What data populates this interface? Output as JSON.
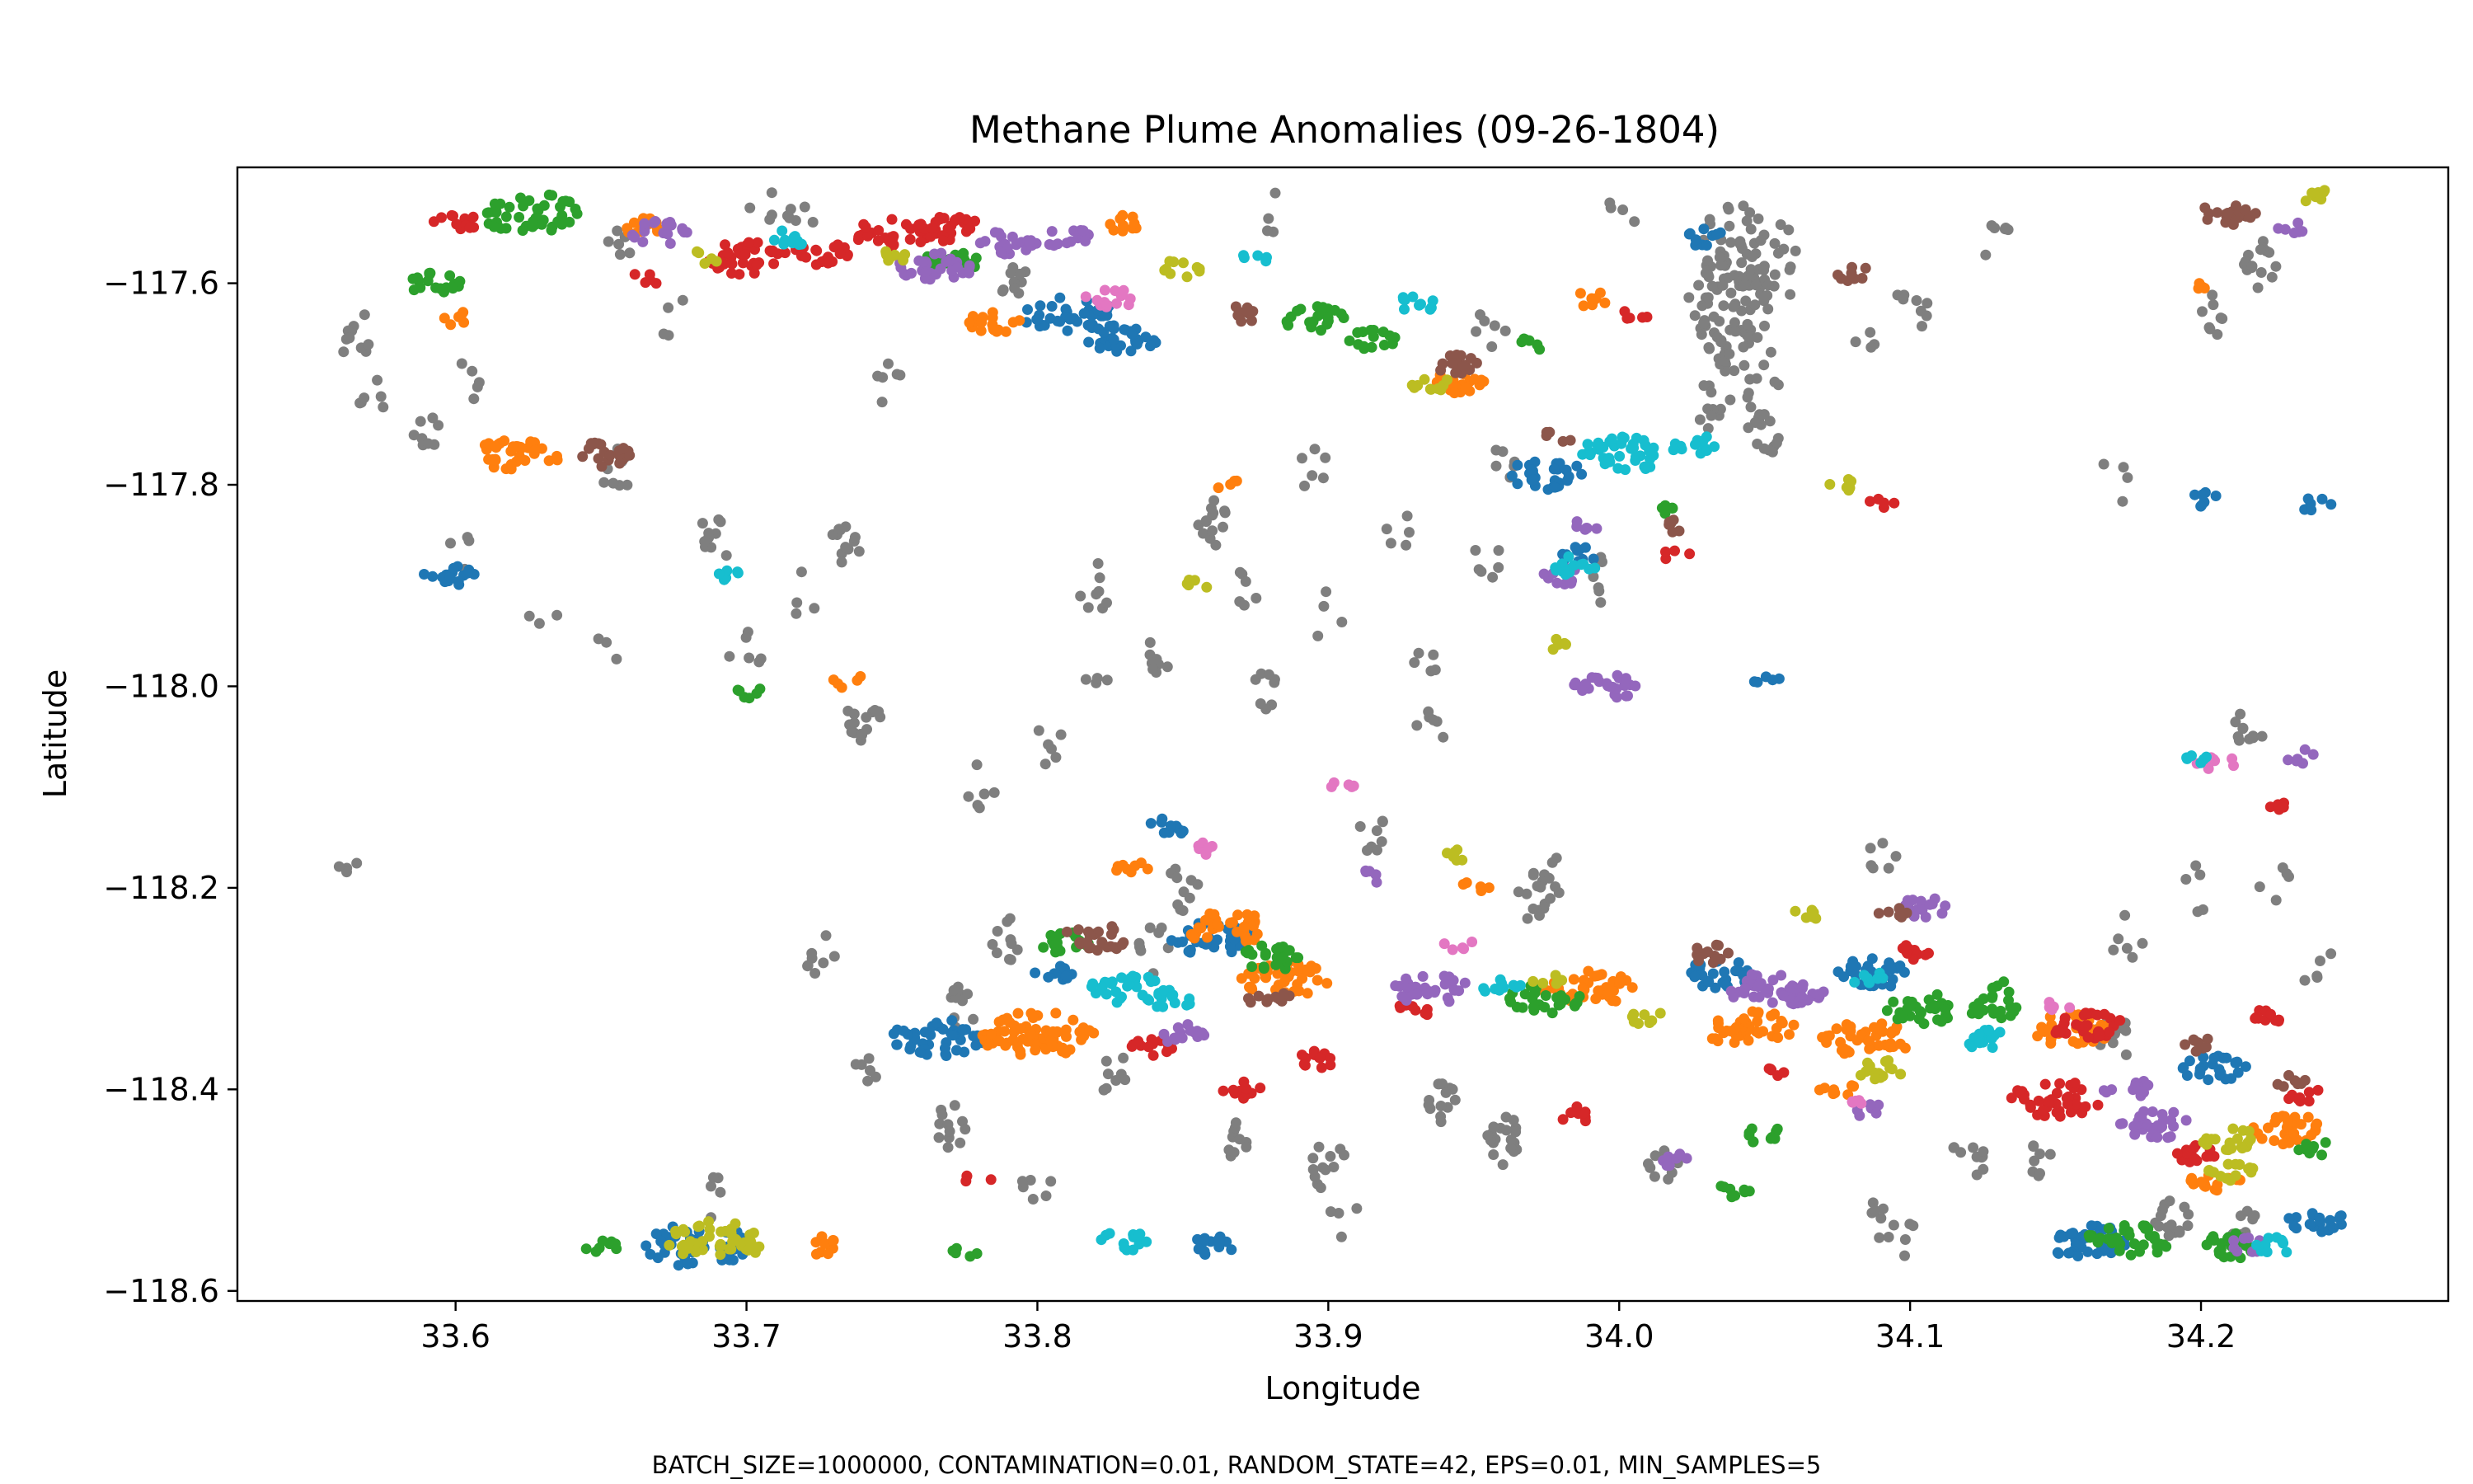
{
  "chart_data": {
    "type": "scatter",
    "title": "Methane Plume Anomalies (09-26-1804)",
    "xlabel": "Longitude",
    "ylabel": "Latitude",
    "xlim": [
      33.525,
      34.285
    ],
    "ylim": [
      -118.61,
      -117.485
    ],
    "xticks": [
      33.6,
      33.7,
      33.8,
      33.9,
      34.0,
      34.1,
      34.2
    ],
    "xtick_labels": [
      "33.6",
      "33.7",
      "33.8",
      "33.9",
      "34.0",
      "34.1",
      "34.2"
    ],
    "yticks": [
      -117.6,
      -117.8,
      -118.0,
      -118.2,
      -118.4,
      -118.6
    ],
    "ytick_labels": [
      "−117.6",
      "−117.8",
      "−118.0",
      "−118.2",
      "−118.4",
      "−118.6"
    ],
    "grid": false,
    "legend": "none",
    "noise_color": "#7f7f7f",
    "cluster_palette": [
      "#1f77b4",
      "#ff7f0e",
      "#2ca02c",
      "#d62728",
      "#9467bd",
      "#8c564b",
      "#e377c2",
      "#bcbd22",
      "#17becf"
    ],
    "clusters": [
      {
        "color": "#1f77b4",
        "centers": [
          [
            33.598,
            -117.89
          ],
          [
            33.81,
            -117.63
          ],
          [
            33.83,
            -117.655
          ],
          [
            33.765,
            -118.35
          ],
          [
            33.683,
            -118.555
          ],
          [
            33.86,
            -118.25
          ],
          [
            33.845,
            -118.14
          ],
          [
            33.975,
            -117.79
          ],
          [
            34.035,
            -118.285
          ],
          [
            34.088,
            -118.285
          ],
          [
            34.16,
            -118.55
          ],
          [
            34.205,
            -118.38
          ],
          [
            34.24,
            -118.53
          ],
          [
            34.2,
            -117.815
          ],
          [
            34.24,
            -117.82
          ],
          [
            34.03,
            -117.555
          ],
          [
            34.05,
            -117.995
          ],
          [
            33.86,
            -118.555
          ],
          [
            33.805,
            -118.285
          ],
          [
            33.985,
            -117.87
          ]
        ],
        "counts": [
          18,
          40,
          30,
          45,
          50,
          35,
          10,
          30,
          30,
          30,
          35,
          25,
          20,
          8,
          6,
          10,
          5,
          14,
          10,
          10
        ]
      },
      {
        "color": "#ff7f0e",
        "centers": [
          [
            33.622,
            -117.77
          ],
          [
            33.8,
            -118.345
          ],
          [
            33.785,
            -117.64
          ],
          [
            33.832,
            -118.18
          ],
          [
            33.865,
            -118.24
          ],
          [
            33.885,
            -118.29
          ],
          [
            33.945,
            -117.7
          ],
          [
            33.99,
            -118.3
          ],
          [
            34.045,
            -118.34
          ],
          [
            34.085,
            -118.35
          ],
          [
            34.155,
            -118.34
          ],
          [
            34.23,
            -118.44
          ],
          [
            34.205,
            -118.49
          ],
          [
            33.725,
            -118.555
          ],
          [
            33.6,
            -117.635
          ],
          [
            33.83,
            -117.54
          ],
          [
            34.075,
            -118.4
          ],
          [
            33.99,
            -117.615
          ],
          [
            33.665,
            -117.545
          ],
          [
            34.2,
            -117.6
          ],
          [
            33.865,
            -117.8
          ],
          [
            33.735,
            -117.995
          ],
          [
            33.95,
            -118.2
          ]
        ],
        "counts": [
          35,
          70,
          18,
          8,
          35,
          40,
          20,
          40,
          40,
          40,
          35,
          30,
          15,
          10,
          6,
          10,
          8,
          8,
          14,
          4,
          4,
          5,
          5
        ]
      },
      {
        "color": "#2ca02c",
        "centers": [
          [
            33.593,
            -117.6
          ],
          [
            33.625,
            -117.53
          ],
          [
            33.77,
            -117.58
          ],
          [
            33.895,
            -117.635
          ],
          [
            33.915,
            -117.655
          ],
          [
            33.81,
            -118.255
          ],
          [
            33.88,
            -118.27
          ],
          [
            33.975,
            -118.31
          ],
          [
            34.105,
            -118.32
          ],
          [
            34.13,
            -118.32
          ],
          [
            34.175,
            -118.55
          ],
          [
            34.21,
            -118.555
          ],
          [
            34.24,
            -118.46
          ],
          [
            33.65,
            -118.555
          ],
          [
            33.7,
            -118.005
          ],
          [
            33.775,
            -118.56
          ],
          [
            34.05,
            -118.445
          ],
          [
            33.97,
            -117.66
          ],
          [
            34.13,
            -118.3
          ],
          [
            34.04,
            -118.5
          ],
          [
            34.015,
            -117.825
          ]
        ],
        "counts": [
          18,
          45,
          20,
          22,
          15,
          18,
          25,
          30,
          30,
          20,
          35,
          25,
          8,
          8,
          6,
          5,
          10,
          6,
          6,
          8,
          5
        ]
      },
      {
        "color": "#d62728",
        "centers": [
          [
            33.6,
            -117.54
          ],
          [
            33.7,
            -117.575
          ],
          [
            33.75,
            -117.55
          ],
          [
            33.77,
            -117.545
          ],
          [
            33.725,
            -117.57
          ],
          [
            33.895,
            -118.37
          ],
          [
            33.87,
            -118.4
          ],
          [
            34.16,
            -118.335
          ],
          [
            34.15,
            -118.41
          ],
          [
            34.2,
            -118.465
          ],
          [
            34.22,
            -118.33
          ],
          [
            34.225,
            -118.12
          ],
          [
            33.93,
            -118.32
          ],
          [
            33.665,
            -117.595
          ],
          [
            34.005,
            -117.63
          ],
          [
            34.09,
            -117.82
          ],
          [
            33.84,
            -118.36
          ],
          [
            34.02,
            -117.87
          ],
          [
            34.1,
            -118.265
          ],
          [
            34.055,
            -118.38
          ],
          [
            33.78,
            -118.49
          ],
          [
            33.985,
            -118.425
          ],
          [
            34.235,
            -118.405
          ]
        ],
        "counts": [
          12,
          35,
          30,
          25,
          20,
          12,
          10,
          30,
          40,
          15,
          10,
          5,
          8,
          5,
          5,
          5,
          15,
          4,
          10,
          5,
          4,
          8,
          8
        ]
      },
      {
        "color": "#9467bd",
        "centers": [
          [
            33.765,
            -117.585
          ],
          [
            33.79,
            -117.56
          ],
          [
            33.81,
            -117.555
          ],
          [
            33.995,
            -118.0
          ],
          [
            33.935,
            -118.3
          ],
          [
            34.05,
            -118.3
          ],
          [
            34.105,
            -118.22
          ],
          [
            34.185,
            -118.435
          ],
          [
            34.215,
            -118.555
          ],
          [
            33.67,
            -117.55
          ],
          [
            33.98,
            -117.89
          ],
          [
            33.915,
            -118.19
          ],
          [
            33.85,
            -118.345
          ],
          [
            34.235,
            -118.07
          ],
          [
            34.085,
            -118.42
          ],
          [
            34.065,
            -118.305
          ],
          [
            33.99,
            -117.84
          ],
          [
            34.02,
            -118.47
          ],
          [
            34.175,
            -118.4
          ],
          [
            34.23,
            -117.545
          ]
        ],
        "counts": [
          30,
          20,
          15,
          25,
          30,
          30,
          15,
          30,
          8,
          20,
          10,
          5,
          15,
          6,
          6,
          20,
          6,
          8,
          15,
          6
        ]
      },
      {
        "color": "#8c564b",
        "centers": [
          [
            33.65,
            -117.77
          ],
          [
            33.82,
            -118.25
          ],
          [
            33.88,
            -118.31
          ],
          [
            33.945,
            -117.68
          ],
          [
            34.03,
            -118.265
          ],
          [
            34.21,
            -117.53
          ],
          [
            33.98,
            -117.75
          ],
          [
            34.02,
            -117.84
          ],
          [
            34.08,
            -117.59
          ],
          [
            34.23,
            -118.39
          ],
          [
            33.87,
            -117.63
          ],
          [
            34.2,
            -118.355
          ],
          [
            34.095,
            -118.225
          ]
        ],
        "counts": [
          20,
          25,
          12,
          14,
          12,
          20,
          5,
          6,
          8,
          8,
          10,
          8,
          6
        ]
      },
      {
        "color": "#e377c2",
        "centers": [
          [
            33.825,
            -117.615
          ],
          [
            33.86,
            -118.16
          ],
          [
            34.205,
            -118.075
          ],
          [
            34.08,
            -118.415
          ],
          [
            33.945,
            -118.255
          ],
          [
            33.905,
            -118.1
          ],
          [
            34.15,
            -118.32
          ]
        ],
        "counts": [
          15,
          6,
          10,
          5,
          5,
          5,
          5
        ]
      },
      {
        "color": "#bcbd22",
        "centers": [
          [
            33.69,
            -118.55
          ],
          [
            33.935,
            -117.7
          ],
          [
            33.85,
            -117.585
          ],
          [
            33.685,
            -117.575
          ],
          [
            34.21,
            -118.45
          ],
          [
            34.21,
            -118.48
          ],
          [
            34.09,
            -118.38
          ],
          [
            34.24,
            -117.515
          ],
          [
            33.98,
            -117.96
          ],
          [
            34.01,
            -118.33
          ],
          [
            34.065,
            -118.225
          ],
          [
            33.855,
            -117.9
          ],
          [
            33.945,
            -118.17
          ],
          [
            33.75,
            -117.575
          ],
          [
            33.975,
            -118.29
          ],
          [
            34.075,
            -117.8
          ]
        ],
        "counts": [
          45,
          10,
          10,
          5,
          20,
          15,
          15,
          8,
          5,
          8,
          6,
          5,
          6,
          8,
          5,
          6
        ]
      },
      {
        "color": "#17becf",
        "centers": [
          [
            34.0,
            -117.77
          ],
          [
            34.025,
            -117.76
          ],
          [
            33.985,
            -117.88
          ],
          [
            33.83,
            -118.3
          ],
          [
            33.845,
            -118.31
          ],
          [
            33.93,
            -117.62
          ],
          [
            34.125,
            -118.35
          ],
          [
            33.715,
            -117.555
          ],
          [
            33.695,
            -117.89
          ],
          [
            33.875,
            -117.575
          ],
          [
            34.225,
            -118.555
          ],
          [
            33.83,
            -118.55
          ],
          [
            34.085,
            -118.29
          ],
          [
            33.96,
            -118.3
          ],
          [
            34.2,
            -118.07
          ]
        ],
        "counts": [
          40,
          15,
          14,
          30,
          15,
          10,
          15,
          10,
          6,
          5,
          10,
          14,
          8,
          10,
          6
        ]
      }
    ],
    "noise_centers": [
      [
        33.565,
        -117.65
      ],
      [
        33.57,
        -117.715
      ],
      [
        33.59,
        -117.74
      ],
      [
        33.605,
        -117.7
      ],
      [
        33.6,
        -117.87
      ],
      [
        33.655,
        -117.785
      ],
      [
        33.675,
        -117.63
      ],
      [
        33.63,
        -117.94
      ],
      [
        33.65,
        -117.97
      ],
      [
        33.69,
        -117.85
      ],
      [
        33.7,
        -117.97
      ],
      [
        33.74,
        -118.03
      ],
      [
        33.735,
        -117.86
      ],
      [
        33.72,
        -117.91
      ],
      [
        33.75,
        -117.7
      ],
      [
        33.78,
        -118.1
      ],
      [
        33.805,
        -118.06
      ],
      [
        33.82,
        -117.9
      ],
      [
        33.82,
        -117.98
      ],
      [
        33.86,
        -117.84
      ],
      [
        33.84,
        -117.97
      ],
      [
        33.87,
        -117.91
      ],
      [
        33.895,
        -117.78
      ],
      [
        33.9,
        -117.93
      ],
      [
        33.88,
        -118.0
      ],
      [
        33.935,
        -117.97
      ],
      [
        33.935,
        -118.05
      ],
      [
        33.955,
        -117.88
      ],
      [
        34.04,
        -117.57
      ],
      [
        34.035,
        -117.62
      ],
      [
        34.045,
        -117.68
      ],
      [
        34.05,
        -117.75
      ],
      [
        34.03,
        -117.72
      ],
      [
        34.05,
        -117.58
      ],
      [
        34.1,
        -117.625
      ],
      [
        34.13,
        -117.56
      ],
      [
        34.17,
        -117.8
      ],
      [
        34.215,
        -118.05
      ],
      [
        34.225,
        -118.2
      ],
      [
        34.24,
        -118.275
      ],
      [
        34.22,
        -117.58
      ],
      [
        34.17,
        -118.35
      ],
      [
        34.19,
        -118.53
      ],
      [
        34.215,
        -118.54
      ],
      [
        34.12,
        -118.47
      ],
      [
        34.09,
        -118.53
      ],
      [
        33.96,
        -118.45
      ],
      [
        33.94,
        -118.41
      ],
      [
        34.015,
        -118.47
      ],
      [
        33.9,
        -118.475
      ],
      [
        33.84,
        -118.26
      ],
      [
        33.775,
        -118.32
      ],
      [
        33.79,
        -118.25
      ],
      [
        33.825,
        -118.38
      ],
      [
        33.74,
        -118.39
      ],
      [
        33.77,
        -118.44
      ],
      [
        33.725,
        -118.27
      ],
      [
        33.69,
        -118.51
      ],
      [
        33.565,
        -118.175
      ],
      [
        33.72,
        -117.535
      ],
      [
        33.88,
        -117.53
      ],
      [
        34.0,
        -117.53
      ],
      [
        34.1,
        -118.555
      ],
      [
        33.915,
        -118.15
      ],
      [
        33.97,
        -118.21
      ],
      [
        33.975,
        -118.19
      ],
      [
        34.09,
        -118.18
      ],
      [
        33.705,
        -117.52
      ],
      [
        33.955,
        -117.645
      ],
      [
        34.175,
        -118.25
      ],
      [
        34.2,
        -118.2
      ],
      [
        34.145,
        -118.47
      ],
      [
        33.8,
        -118.5
      ],
      [
        33.87,
        -118.45
      ],
      [
        33.905,
        -118.53
      ],
      [
        34.205,
        -117.63
      ],
      [
        33.995,
        -117.895
      ],
      [
        34.085,
        -117.64
      ],
      [
        33.96,
        -117.775
      ],
      [
        33.85,
        -118.2
      ],
      [
        33.925,
        -117.85
      ],
      [
        33.79,
        -117.59
      ],
      [
        33.655,
        -117.57
      ]
    ],
    "noise_counts": [
      10,
      6,
      8,
      5,
      4,
      8,
      4,
      3,
      3,
      10,
      6,
      15,
      12,
      4,
      6,
      6,
      6,
      8,
      4,
      14,
      8,
      6,
      6,
      4,
      8,
      5,
      6,
      6,
      40,
      50,
      30,
      15,
      10,
      30,
      8,
      6,
      4,
      10,
      5,
      5,
      15,
      12,
      15,
      12,
      10,
      8,
      20,
      14,
      10,
      12,
      8,
      10,
      10,
      8,
      6,
      12,
      8,
      5,
      4,
      6,
      4,
      4,
      4,
      8,
      10,
      10,
      6,
      4,
      6,
      6,
      5,
      8,
      6,
      10,
      4,
      8,
      6,
      4,
      6,
      10,
      5,
      10,
      6
    ]
  },
  "footnote": "BATCH_SIZE=1000000, CONTAMINATION=0.01, RANDOM_STATE=42, EPS=0.01, MIN_SAMPLES=5"
}
